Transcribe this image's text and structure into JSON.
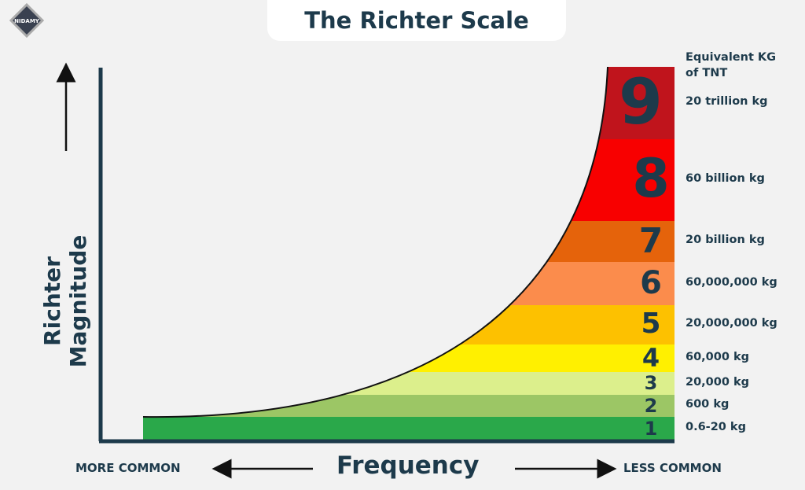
{
  "title": "The Richter Scale",
  "logo_text": "NIDAMY",
  "y_axis_label": "Richter Magnitude",
  "x_axis_label": "Frequency",
  "left_label": "MORE COMMON",
  "right_label": "LESS COMMON",
  "tnt_header": "Equivalent KG of TNT",
  "levels": [
    {
      "magnitude": "1",
      "tnt": "0.6-20 kg",
      "color": "#2aa84a"
    },
    {
      "magnitude": "2",
      "tnt": "600 kg",
      "color": "#9cc665"
    },
    {
      "magnitude": "3",
      "tnt": "20,000 kg",
      "color": "#dcef8c"
    },
    {
      "magnitude": "4",
      "tnt": "60,000 kg",
      "color": "#fff000"
    },
    {
      "magnitude": "5",
      "tnt": "20,000,000 kg",
      "color": "#fdc100"
    },
    {
      "magnitude": "6",
      "tnt": "60,000,000 kg",
      "color": "#fb8c4c"
    },
    {
      "magnitude": "7",
      "tnt": "20 billion kg",
      "color": "#e5630b"
    },
    {
      "magnitude": "8",
      "tnt": "60 billion kg",
      "color": "#f80000"
    },
    {
      "magnitude": "9",
      "tnt": "20 trillion kg",
      "color": "#c0141c"
    }
  ]
}
